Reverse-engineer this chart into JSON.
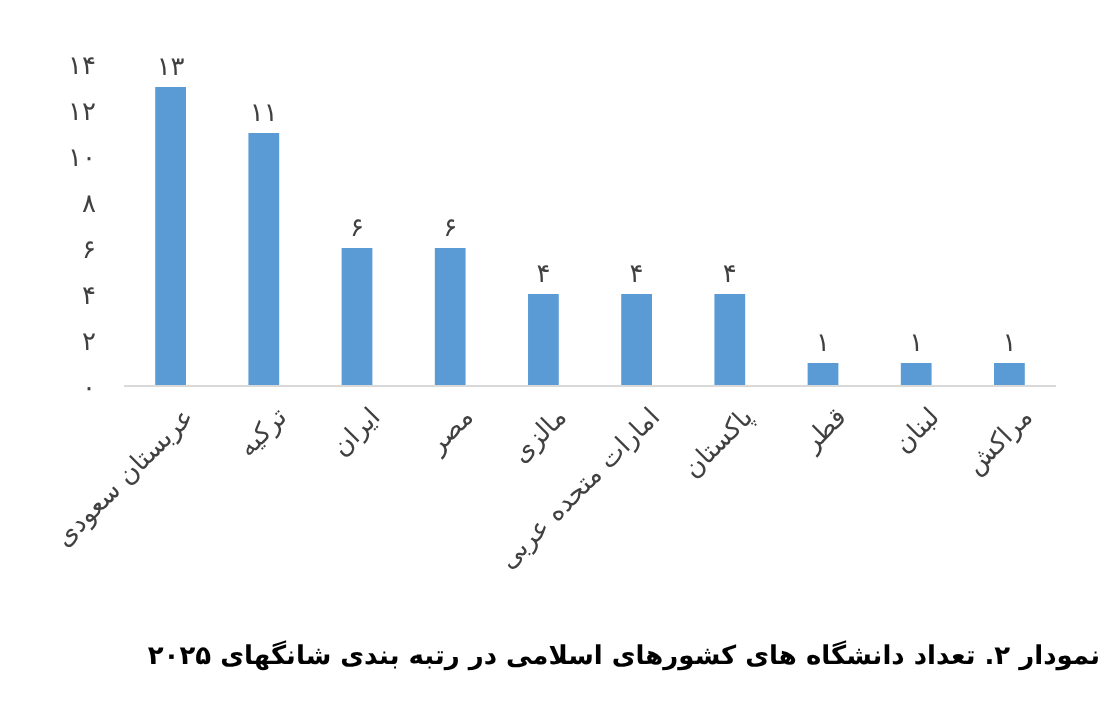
{
  "chart_data": {
    "type": "bar",
    "title": "نمودار ۲. تعداد دانشگاه های کشورهای اسلامی در رتبه بندی شانگهای ۲۰۲۵",
    "categories": [
      "عربستان سعودی",
      "ترکیه",
      "ایران",
      "مصر",
      "مالزی",
      "امارات متحده عربی",
      "پاکستان",
      "قطر",
      "لبنان",
      "مراکش"
    ],
    "values": [
      13,
      11,
      6,
      6,
      4,
      4,
      4,
      1,
      1,
      1
    ],
    "value_labels": [
      "۱۳",
      "۱۱",
      "۶",
      "۶",
      "۴",
      "۴",
      "۴",
      "۱",
      "۱",
      "۱"
    ],
    "color": "#5b9bd5",
    "ylim": [
      0,
      14
    ],
    "yticks": [
      {
        "value": 0,
        "label": "۰"
      },
      {
        "value": 2,
        "label": "۲"
      },
      {
        "value": 4,
        "label": "۴"
      },
      {
        "value": 6,
        "label": "۶"
      },
      {
        "value": 8,
        "label": "۸"
      },
      {
        "value": 10,
        "label": "۱۰"
      },
      {
        "value": 12,
        "label": "۱۲"
      },
      {
        "value": 14,
        "label": "۱۴"
      }
    ],
    "grid": false
  }
}
